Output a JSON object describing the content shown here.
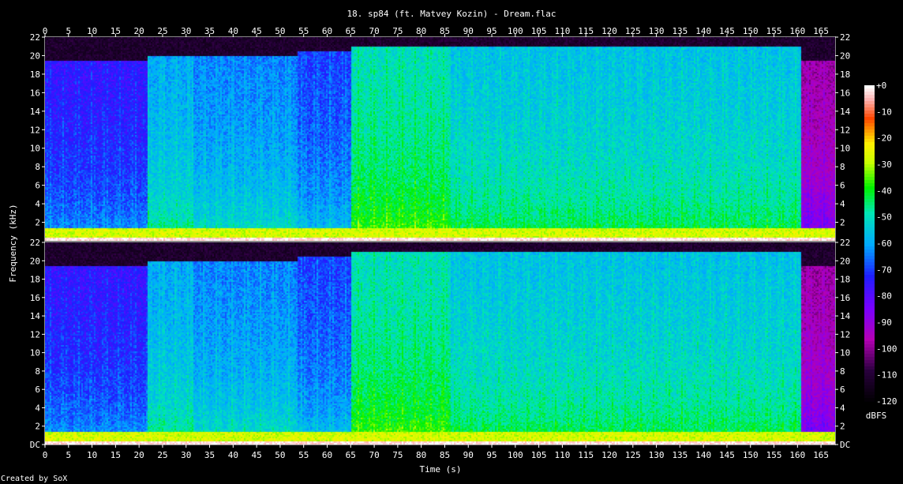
{
  "chart_data": {
    "type": "heatmap",
    "title": "18. sp84 (ft. Matvey Kozin) - Dream.flac",
    "xlabel": "Time (s)",
    "ylabel": "Frequency (kHz)",
    "footer": "Created by SoX",
    "colorbar_label": "dBFS",
    "xlim": [
      0,
      168
    ],
    "ylim": [
      0,
      22
    ],
    "x_ticks": [
      0,
      5,
      10,
      15,
      20,
      25,
      30,
      35,
      40,
      45,
      50,
      55,
      60,
      65,
      70,
      75,
      80,
      85,
      90,
      95,
      100,
      105,
      110,
      115,
      120,
      125,
      130,
      135,
      140,
      145,
      150,
      155,
      160,
      165
    ],
    "y_ticks": [
      {
        "value": 22,
        "label": "22"
      },
      {
        "value": 20,
        "label": "20"
      },
      {
        "value": 18,
        "label": "18"
      },
      {
        "value": 16,
        "label": "16"
      },
      {
        "value": 14,
        "label": "14"
      },
      {
        "value": 12,
        "label": "12"
      },
      {
        "value": 10,
        "label": "10"
      },
      {
        "value": 8,
        "label": "8"
      },
      {
        "value": 6,
        "label": "6"
      },
      {
        "value": 4,
        "label": "4"
      },
      {
        "value": 2,
        "label": "2"
      }
    ],
    "y_ticks_lower_extra": {
      "value": 0,
      "label": "DC"
    },
    "colorbar_ticks": [
      "+0",
      "-10",
      "-20",
      "-30",
      "-40",
      "-50",
      "-60",
      "-70",
      "-80",
      "-90",
      "-100",
      "-110",
      "-120"
    ],
    "colorbar_range": [
      -120,
      0
    ],
    "channels": 2,
    "segments": [
      {
        "t0": 0,
        "t1": 21.5,
        "level_db": -78,
        "cutoff_khz": 19.5
      },
      {
        "t0": 21.5,
        "t1": 31.5,
        "level_db": -62,
        "cutoff_khz": 20
      },
      {
        "t0": 31.5,
        "t1": 53.5,
        "level_db": -66,
        "cutoff_khz": 20
      },
      {
        "t0": 53.5,
        "t1": 65,
        "level_db": -72,
        "cutoff_khz": 20.5
      },
      {
        "t0": 65,
        "t1": 86,
        "level_db": -52,
        "cutoff_khz": 21
      },
      {
        "t0": 86,
        "t1": 160.5,
        "level_db": -58,
        "cutoff_khz": 21
      },
      {
        "t0": 160.5,
        "t1": 168,
        "level_db": -100,
        "cutoff_khz": 19.5
      }
    ]
  }
}
